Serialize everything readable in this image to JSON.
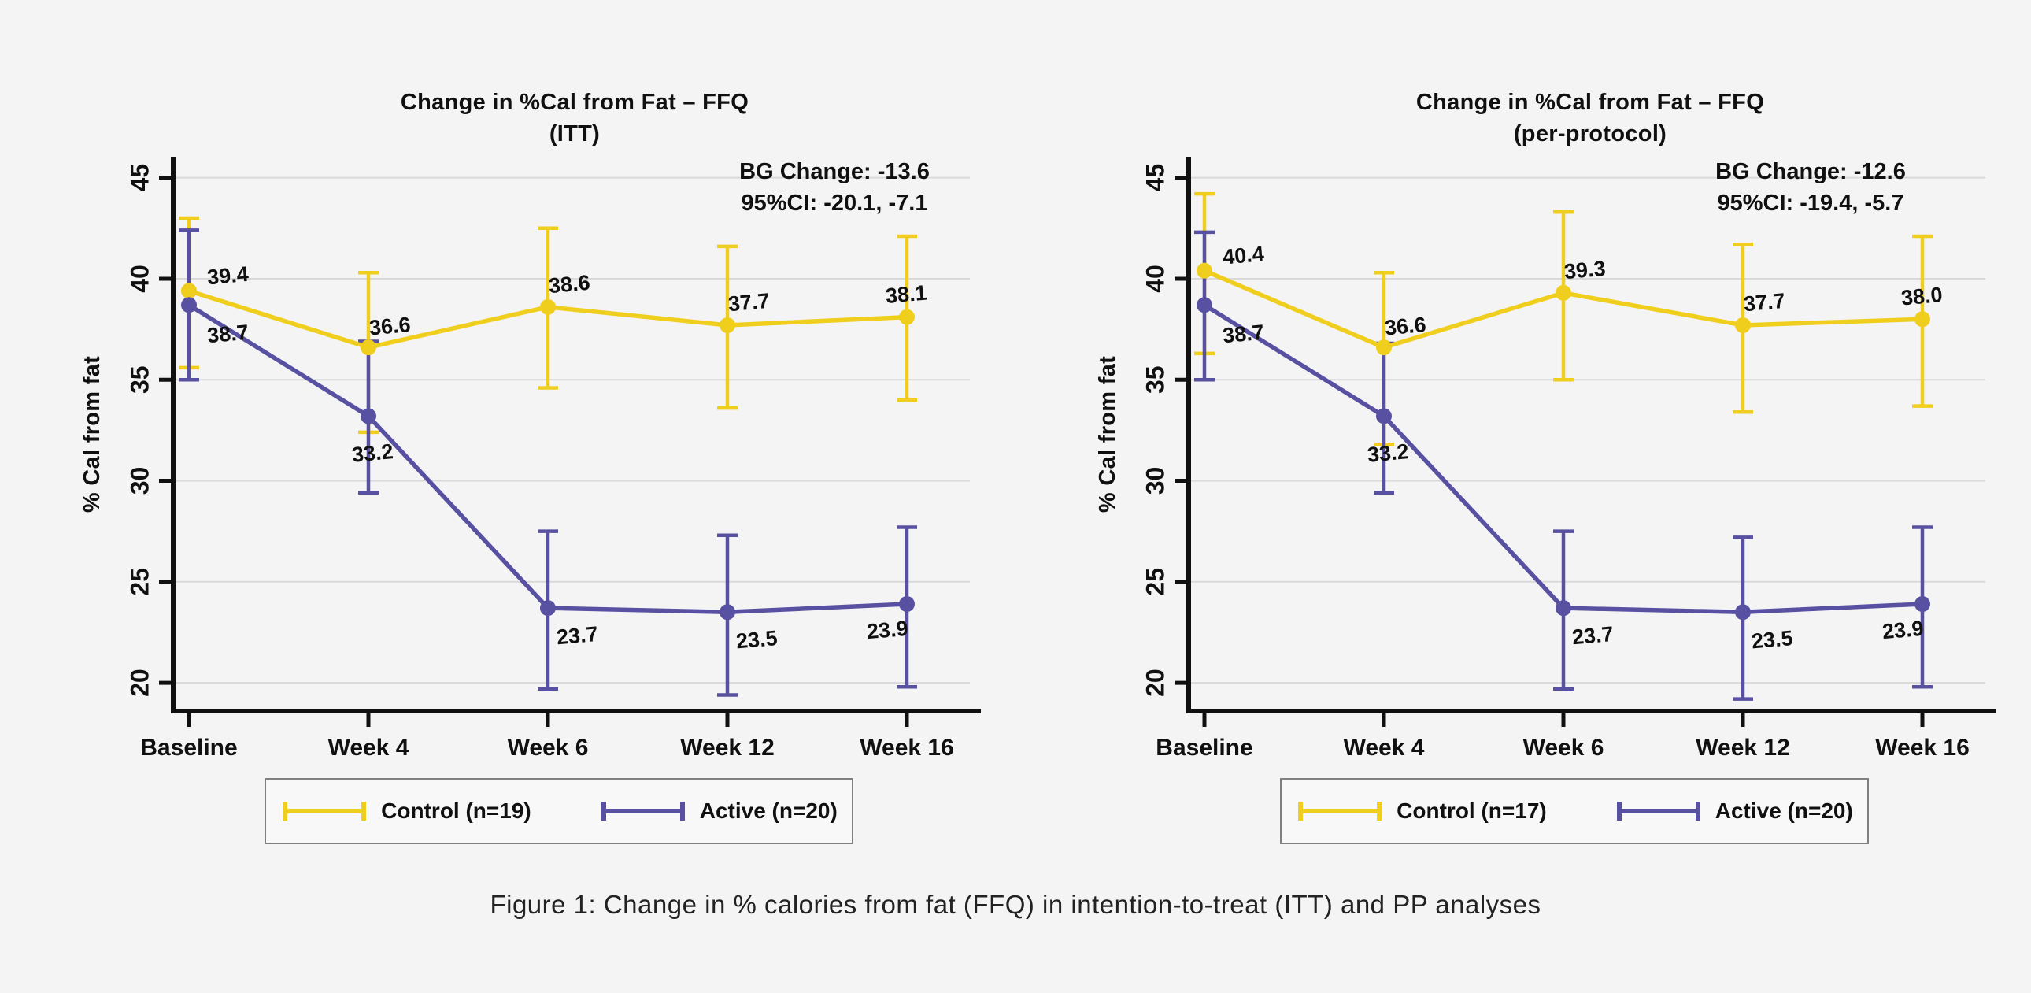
{
  "figure": {
    "caption": "Figure 1: Change in % calories from fat (FFQ) in intention-to-treat (ITT) and PP analyses"
  },
  "colors": {
    "control": "#F0CE1E",
    "active": "#5850A0",
    "grid": "#d9d9d9",
    "axis": "#101010",
    "background": "#f4f4f5",
    "legend_border": "#808080"
  },
  "chart_data": [
    {
      "type": "line",
      "title_line1": "Change in %Cal from Fat – FFQ",
      "title_line2": "(ITT)",
      "ylabel": "% Cal from fat",
      "xlabel": "",
      "annotation": [
        "BG Change: -13.6",
        "95%CI: -20.1, -7.1"
      ],
      "categories": [
        "Baseline",
        "Week 4",
        "Week 6",
        "Week 12",
        "Week 16"
      ],
      "yticks": [
        45,
        40,
        35,
        30,
        25,
        20
      ],
      "ylim": [
        18.6,
        46
      ],
      "grid": true,
      "legend_position": "bottom",
      "series": [
        {
          "name": "Control (n=19)",
          "color_key": "control",
          "values": [
            39.4,
            36.6,
            38.6,
            37.7,
            38.1
          ],
          "ci_low": [
            35.6,
            32.4,
            34.6,
            33.6,
            34.0
          ],
          "ci_high": [
            43.0,
            40.3,
            42.5,
            41.6,
            42.1
          ]
        },
        {
          "name": "Active (n=20)",
          "color_key": "active",
          "values": [
            38.7,
            33.2,
            23.7,
            23.5,
            23.9
          ],
          "ci_low": [
            35.0,
            29.4,
            19.7,
            19.4,
            19.8
          ],
          "ci_high": [
            42.4,
            36.9,
            27.5,
            27.3,
            27.7
          ]
        }
      ]
    },
    {
      "type": "line",
      "title_line1": "Change in %Cal from Fat – FFQ",
      "title_line2": "(per-protocol)",
      "ylabel": "% Cal from fat",
      "xlabel": "",
      "annotation": [
        "BG Change: -12.6",
        "95%CI: -19.4, -5.7"
      ],
      "categories": [
        "Baseline",
        "Week 4",
        "Week 6",
        "Week 12",
        "Week 16"
      ],
      "yticks": [
        45,
        40,
        35,
        30,
        25,
        20
      ],
      "ylim": [
        18.6,
        46
      ],
      "grid": true,
      "legend_position": "bottom",
      "series": [
        {
          "name": "Control (n=17)",
          "color_key": "control",
          "values": [
            40.4,
            36.6,
            39.3,
            37.7,
            38.0
          ],
          "ci_low": [
            36.3,
            31.8,
            35.0,
            33.4,
            33.7
          ],
          "ci_high": [
            44.2,
            40.3,
            43.3,
            41.7,
            42.1
          ]
        },
        {
          "name": "Active (n=20)",
          "color_key": "active",
          "values": [
            38.7,
            33.2,
            23.7,
            23.5,
            23.9
          ],
          "ci_low": [
            35.0,
            29.4,
            19.7,
            19.2,
            19.8
          ],
          "ci_high": [
            42.3,
            36.8,
            27.5,
            27.2,
            27.7
          ]
        }
      ]
    }
  ]
}
